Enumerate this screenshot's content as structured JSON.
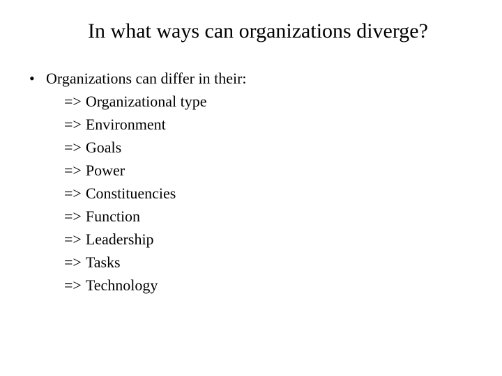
{
  "title": "In what ways can organizations diverge?",
  "lead_bullet": "Organizations can differ in their:",
  "arrow_symbol": "=>",
  "items": [
    "Organizational type",
    "Environment",
    "Goals",
    "Power",
    "Constituencies",
    "Function",
    "Leadership",
    "Tasks",
    "Technology"
  ],
  "title_fontsize": 30,
  "body_fontsize": 22,
  "text_color": "#000000",
  "background_color": "#ffffff"
}
